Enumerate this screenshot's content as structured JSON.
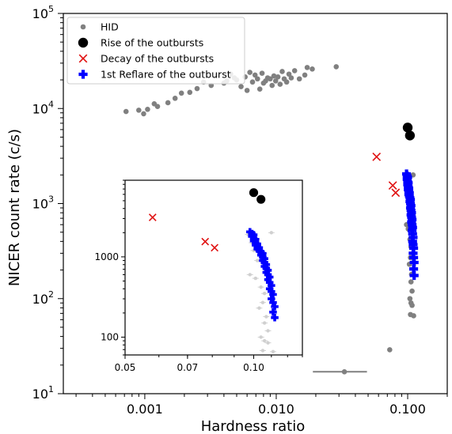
{
  "chart_data": [
    {
      "type": "scatter",
      "title": "",
      "xlabel": "Hardness ratio",
      "ylabel": "NICER count rate (c/s)",
      "xscale": "log",
      "yscale": "log",
      "xlim": [
        0.00024,
        0.2
      ],
      "ylim": [
        10,
        100000
      ],
      "xticks": [
        {
          "value": 0.001,
          "label": "0.001"
        },
        {
          "value": 0.01,
          "label": "0.010"
        },
        {
          "value": 0.1,
          "label": "0.100"
        }
      ],
      "yticks": [
        {
          "value": 10,
          "base": "10",
          "exp": "1"
        },
        {
          "value": 100,
          "base": "10",
          "exp": "2"
        },
        {
          "value": 1000,
          "base": "10",
          "exp": "3"
        },
        {
          "value": 10000,
          "base": "10",
          "exp": "4"
        },
        {
          "value": 100000,
          "base": "10",
          "exp": "5"
        }
      ],
      "legend": {
        "placement": "top-left",
        "entries": [
          {
            "label": "HID",
            "marker": "small-circle",
            "color": "#808080"
          },
          {
            "label": "Rise of the outbursts",
            "marker": "large-circle",
            "color": "#000000"
          },
          {
            "label": "Decay of the outbursts",
            "marker": "x",
            "color": "#e01010"
          },
          {
            "label": "1st Reflare of the outburst",
            "marker": "plus",
            "color": "#0000ff"
          }
        ]
      },
      "series": [
        {
          "name": "HID",
          "color": "#808080",
          "points": [
            [
              0.00072,
              9300
            ],
            [
              0.0009,
              9600
            ],
            [
              0.00098,
              8800
            ],
            [
              0.00105,
              9800
            ],
            [
              0.00118,
              11200
            ],
            [
              0.00125,
              10500
            ],
            [
              0.0015,
              11500
            ],
            [
              0.0017,
              12800
            ],
            [
              0.0019,
              14500
            ],
            [
              0.0022,
              14800
            ],
            [
              0.0025,
              16200
            ],
            [
              0.0028,
              19000
            ],
            [
              0.0032,
              17500
            ],
            [
              0.0035,
              22000
            ],
            [
              0.004,
              18500
            ],
            [
              0.0042,
              19500
            ],
            [
              0.0045,
              23000
            ],
            [
              0.0048,
              21000
            ],
            [
              0.005,
              20000
            ],
            [
              0.0054,
              17000
            ],
            [
              0.0058,
              21500
            ],
            [
              0.006,
              15500
            ],
            [
              0.0063,
              24000
            ],
            [
              0.0066,
              19000
            ],
            [
              0.0069,
              22500
            ],
            [
              0.0072,
              20500
            ],
            [
              0.0075,
              16000
            ],
            [
              0.0078,
              23500
            ],
            [
              0.008,
              18500
            ],
            [
              0.0083,
              19500
            ],
            [
              0.0086,
              21000
            ],
            [
              0.009,
              20500
            ],
            [
              0.0093,
              17500
            ],
            [
              0.0096,
              22000
            ],
            [
              0.0099,
              19500
            ],
            [
              0.0103,
              21500
            ],
            [
              0.0107,
              18000
            ],
            [
              0.0111,
              24500
            ],
            [
              0.0115,
              20500
            ],
            [
              0.012,
              19000
            ],
            [
              0.0125,
              23000
            ],
            [
              0.013,
              21000
            ],
            [
              0.0138,
              25000
            ],
            [
              0.015,
              20500
            ],
            [
              0.0165,
              22500
            ],
            [
              0.0172,
              27000
            ],
            [
              0.0188,
              26000
            ],
            [
              0.0286,
              27500
            ],
            [
              0.097,
              1900
            ],
            [
              0.099,
              1500
            ],
            [
              0.1,
              1200
            ],
            [
              0.102,
              900
            ],
            [
              0.098,
              600
            ],
            [
              0.101,
              540
            ],
            [
              0.104,
              420
            ],
            [
              0.106,
              350
            ],
            [
              0.105,
              270
            ],
            [
              0.103,
              230
            ],
            [
              0.107,
              180
            ],
            [
              0.106,
              150
            ],
            [
              0.108,
              120
            ],
            [
              0.104,
              100
            ],
            [
              0.106,
              90
            ],
            [
              0.108,
              85
            ],
            [
              0.105,
              68
            ],
            [
              0.111,
              66
            ],
            [
              0.11,
              2000
            ],
            [
              0.073,
              29
            ],
            [
              0.033,
              17
            ]
          ],
          "error_bars": [
            {
              "x": 0.033,
              "y": 17,
              "xerr": [
                0.019,
                0.049
              ]
            },
            {
              "x": 0.073,
              "y": 29,
              "xerr": [
                0.071,
                0.075
              ]
            }
          ]
        },
        {
          "name": "Rise of the outbursts",
          "color": "#000000",
          "points": [
            [
              0.1,
              6300
            ],
            [
              0.104,
              5200
            ]
          ]
        },
        {
          "name": "Decay of the outbursts",
          "color": "#e01010",
          "points": [
            [
              0.058,
              3100
            ],
            [
              0.077,
              1550
            ],
            [
              0.081,
              1300
            ]
          ]
        },
        {
          "name": "1st Reflare of the outburst",
          "color": "#0000ff",
          "points": [
            [
              0.098,
              2050
            ],
            [
              0.099,
              1950
            ],
            [
              0.1,
              1880
            ],
            [
              0.099,
              1800
            ],
            [
              0.1,
              1700
            ],
            [
              0.101,
              1650
            ],
            [
              0.1,
              1580
            ],
            [
              0.101,
              1500
            ],
            [
              0.102,
              1450
            ],
            [
              0.101,
              1400
            ],
            [
              0.102,
              1350
            ],
            [
              0.103,
              1300
            ],
            [
              0.102,
              1250
            ],
            [
              0.103,
              1200
            ],
            [
              0.104,
              1150
            ],
            [
              0.105,
              1100
            ],
            [
              0.104,
              1050
            ],
            [
              0.105,
              1000
            ],
            [
              0.106,
              950
            ],
            [
              0.105,
              900
            ],
            [
              0.106,
              850
            ],
            [
              0.107,
              800
            ],
            [
              0.106,
              760
            ],
            [
              0.107,
              720
            ],
            [
              0.108,
              680
            ],
            [
              0.107,
              640
            ],
            [
              0.108,
              600
            ],
            [
              0.109,
              560
            ],
            [
              0.108,
              520
            ],
            [
              0.109,
              480
            ],
            [
              0.11,
              440
            ],
            [
              0.109,
              400
            ],
            [
              0.11,
              370
            ],
            [
              0.111,
              340
            ],
            [
              0.11,
              300
            ],
            [
              0.111,
              270
            ],
            [
              0.112,
              240
            ],
            [
              0.111,
              205
            ],
            [
              0.112,
              175
            ]
          ]
        }
      ],
      "inset": {
        "xscale": "log",
        "yscale": "log",
        "xlim": [
          0.05,
          0.13
        ],
        "ylim": [
          60,
          9000
        ],
        "xticks": [
          {
            "value": 0.05,
            "label": "0.05"
          },
          {
            "value": 0.07,
            "label": "0.07"
          },
          {
            "value": 0.1,
            "label": "0.10"
          }
        ],
        "yticks": [
          {
            "value": 100,
            "label": "100"
          },
          {
            "value": 1000,
            "label": "1000"
          }
        ]
      }
    }
  ]
}
